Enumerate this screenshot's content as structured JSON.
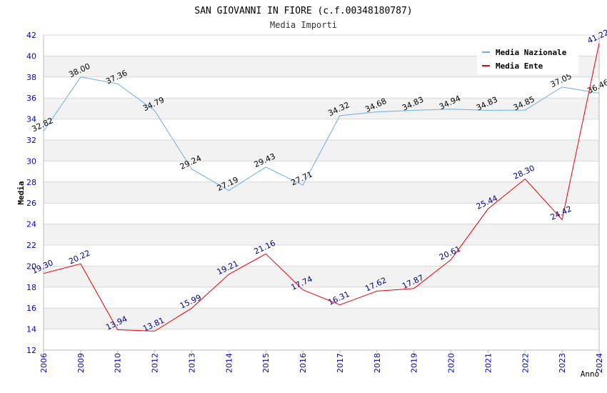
{
  "chart_data": {
    "type": "line",
    "title": "SAN GIOVANNI IN FIORE (c.f.00348180787)",
    "subtitle": "Media Importi",
    "xlabel": "Anno",
    "ylabel": "Media",
    "categories": [
      "2006",
      "2009",
      "2010",
      "2012",
      "2013",
      "2014",
      "2015",
      "2016",
      "2017",
      "2018",
      "2019",
      "2020",
      "2021",
      "2022",
      "2023",
      "2024"
    ],
    "ylim": [
      12,
      42
    ],
    "yticks": [
      12,
      14,
      16,
      18,
      20,
      22,
      24,
      26,
      28,
      30,
      32,
      34,
      36,
      38,
      40,
      42
    ],
    "grid": true,
    "legend_position": "top-right",
    "series": [
      {
        "name": "Media Nazionale",
        "color": "#6aaee6",
        "label_color": "#000000",
        "values": [
          32.82,
          38.0,
          37.36,
          34.79,
          29.24,
          27.19,
          29.43,
          27.71,
          34.32,
          34.68,
          34.83,
          34.94,
          34.83,
          34.85,
          37.05,
          36.46
        ],
        "labels": [
          "32.82",
          "38.00",
          "37.36",
          "34.79",
          "29.24",
          "27.19",
          "29.43",
          "27.71",
          "34.32",
          "34.68",
          "34.83",
          "34.94",
          "34.83",
          "34.85",
          "37.05",
          "36.46"
        ]
      },
      {
        "name": "Media Ente",
        "color": "#e8000b",
        "label_color": "#000080",
        "values": [
          19.3,
          20.22,
          13.94,
          13.81,
          15.99,
          19.21,
          21.16,
          17.74,
          16.31,
          17.62,
          17.87,
          20.61,
          25.44,
          28.3,
          24.42,
          41.22
        ],
        "labels": [
          "19.30",
          "20.22",
          "13.94",
          "13.81",
          "15.99",
          "19.21",
          "21.16",
          "17.74",
          "16.31",
          "17.62",
          "17.87",
          "20.61",
          "25.44",
          "28.30",
          "24.42",
          "41.22"
        ]
      }
    ]
  },
  "colors": {
    "axis_tick_text": "#0000cc",
    "band": "#f2f2f2",
    "grid": "#d8d8d8",
    "axis": "#bbbbbb"
  }
}
